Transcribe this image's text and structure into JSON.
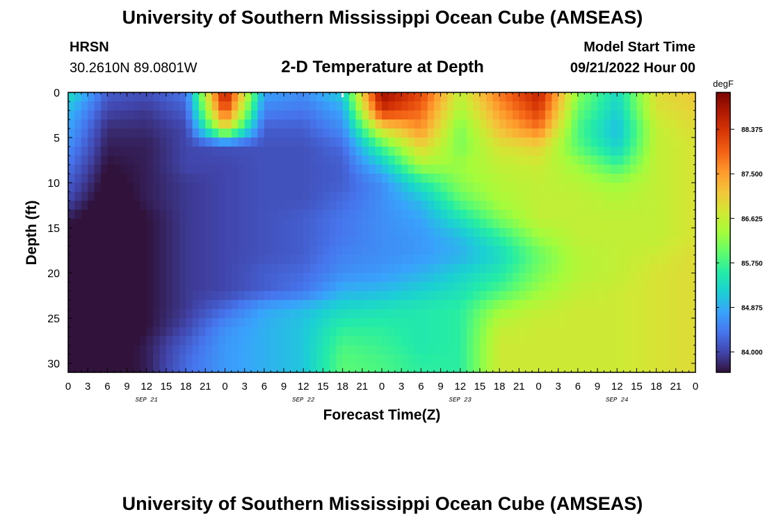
{
  "page_title": "University of Southern Mississippi Ocean Cube (AMSEAS)",
  "station": {
    "name": "HRSN",
    "coords": "30.2610N  89.0801W"
  },
  "subtitle": "2-D Temperature at Depth",
  "model": {
    "label": "Model Start Time",
    "start": "09/21/2022 Hour 00"
  },
  "footer_title": "University of Southern Mississippi Ocean Cube (AMSEAS)",
  "chart_data": {
    "type": "heatmap",
    "title": "2-D Temperature at Depth",
    "xlabel": "Forecast Time(Z)",
    "ylabel": "Depth (ft)",
    "x_tick_labels": [
      "0",
      "3",
      "6",
      "9",
      "12",
      "15",
      "18",
      "21",
      "0",
      "3",
      "6",
      "9",
      "12",
      "15",
      "18",
      "21",
      "0",
      "3",
      "6",
      "9",
      "12",
      "15",
      "18",
      "21",
      "0",
      "3",
      "6",
      "9",
      "12",
      "15",
      "18",
      "21",
      "0"
    ],
    "date_labels": [
      {
        "label": "SEP 21",
        "hour": 12
      },
      {
        "label": "SEP 22",
        "hour": 36
      },
      {
        "label": "SEP 23",
        "hour": 60
      },
      {
        "label": "SEP 24",
        "hour": 84
      }
    ],
    "xlim": [
      0,
      96
    ],
    "ylim": [
      0,
      31
    ],
    "y_ticks": [
      0,
      5,
      10,
      15,
      20,
      25,
      30
    ],
    "colorbar": {
      "unit": "degF",
      "ticks": [
        "84.000",
        "84.875",
        "85.750",
        "86.625",
        "87.500",
        "88.375"
      ],
      "range": [
        83.6,
        89.1
      ],
      "colors": [
        "#30123b",
        "#4145ab",
        "#4675ed",
        "#39a2fc",
        "#1bcfd4",
        "#24eca6",
        "#61fc6c",
        "#a4fc3b",
        "#d1e834",
        "#f3c63a",
        "#fe9b2d",
        "#f36315",
        "#d93806",
        "#b11901",
        "#7a0403"
      ]
    },
    "depths_ft": [
      0,
      2,
      4,
      6,
      8,
      10,
      12,
      14,
      16,
      18,
      20,
      22,
      24,
      26,
      28,
      30
    ],
    "hours": [
      0,
      6,
      12,
      18,
      24,
      30,
      36,
      42,
      48,
      54,
      60,
      66,
      72,
      78,
      84,
      90,
      96
    ],
    "values": [
      [
        85.4,
        84.2,
        84.1,
        84.4,
        88.8,
        84.8,
        84.6,
        85.2,
        88.9,
        88.2,
        86.6,
        87.8,
        88.6,
        86.2,
        85.3,
        86.9,
        87.1
      ],
      [
        85.0,
        84.0,
        83.9,
        84.2,
        88.2,
        84.5,
        84.4,
        84.8,
        88.4,
        87.9,
        86.4,
        87.5,
        88.3,
        86.0,
        85.2,
        86.8,
        87.0
      ],
      [
        84.8,
        83.8,
        83.8,
        84.0,
        86.9,
        84.2,
        84.2,
        84.6,
        86.9,
        87.6,
        86.1,
        87.2,
        87.8,
        85.8,
        85.0,
        86.6,
        86.9
      ],
      [
        84.6,
        83.7,
        83.7,
        84.0,
        84.1,
        84.1,
        84.1,
        84.3,
        85.8,
        87.0,
        86.1,
        86.8,
        87.0,
        85.9,
        85.2,
        86.6,
        86.8
      ],
      [
        84.4,
        83.6,
        83.7,
        84.0,
        84.0,
        84.1,
        84.1,
        84.2,
        85.1,
        86.4,
        86.3,
        86.6,
        86.7,
        86.3,
        85.7,
        86.6,
        86.8
      ],
      [
        84.2,
        83.5,
        83.7,
        83.9,
        84.0,
        84.1,
        84.1,
        84.2,
        84.6,
        85.5,
        86.2,
        86.5,
        86.6,
        86.5,
        86.3,
        86.6,
        86.8
      ],
      [
        84.0,
        83.4,
        83.7,
        83.9,
        84.0,
        84.1,
        84.1,
        84.3,
        84.6,
        85.0,
        85.9,
        86.4,
        86.6,
        86.6,
        86.5,
        86.6,
        86.8
      ],
      [
        83.7,
        83.3,
        83.6,
        83.9,
        84.0,
        84.1,
        84.2,
        84.4,
        84.6,
        84.8,
        85.4,
        86.1,
        86.6,
        86.6,
        86.6,
        86.6,
        86.8
      ],
      [
        83.5,
        83.3,
        83.6,
        83.9,
        84.0,
        84.1,
        84.2,
        84.4,
        84.6,
        84.7,
        85.0,
        85.6,
        86.3,
        86.6,
        86.6,
        86.6,
        86.8
      ],
      [
        83.3,
        83.2,
        83.6,
        83.9,
        84.0,
        84.1,
        84.2,
        84.5,
        84.6,
        84.7,
        84.9,
        85.3,
        86.0,
        86.5,
        86.6,
        86.7,
        86.9
      ],
      [
        83.2,
        83.2,
        83.6,
        83.9,
        84.0,
        84.2,
        84.3,
        84.6,
        84.7,
        84.9,
        85.2,
        85.5,
        86.1,
        86.5,
        86.6,
        86.8,
        86.9
      ],
      [
        83.2,
        83.2,
        83.6,
        83.9,
        84.0,
        84.2,
        84.4,
        84.9,
        85.0,
        85.2,
        85.4,
        85.8,
        86.3,
        86.6,
        86.7,
        86.8,
        86.9
      ],
      [
        83.3,
        83.3,
        83.6,
        83.9,
        84.3,
        84.8,
        85.0,
        85.3,
        85.4,
        85.5,
        85.6,
        86.3,
        86.6,
        86.7,
        86.7,
        86.8,
        86.9
      ],
      [
        83.3,
        83.3,
        83.6,
        84.0,
        84.6,
        84.9,
        85.1,
        85.6,
        85.6,
        85.5,
        85.6,
        86.6,
        86.7,
        86.7,
        86.7,
        86.8,
        86.9
      ],
      [
        83.3,
        83.4,
        83.7,
        84.2,
        84.7,
        84.9,
        85.1,
        85.8,
        85.7,
        85.5,
        85.6,
        86.7,
        86.7,
        86.7,
        86.7,
        86.8,
        86.9
      ],
      [
        83.4,
        83.4,
        83.7,
        84.3,
        84.7,
        84.9,
        85.1,
        85.9,
        85.8,
        85.6,
        85.6,
        86.7,
        86.7,
        86.7,
        86.7,
        86.8,
        86.9
      ]
    ]
  }
}
